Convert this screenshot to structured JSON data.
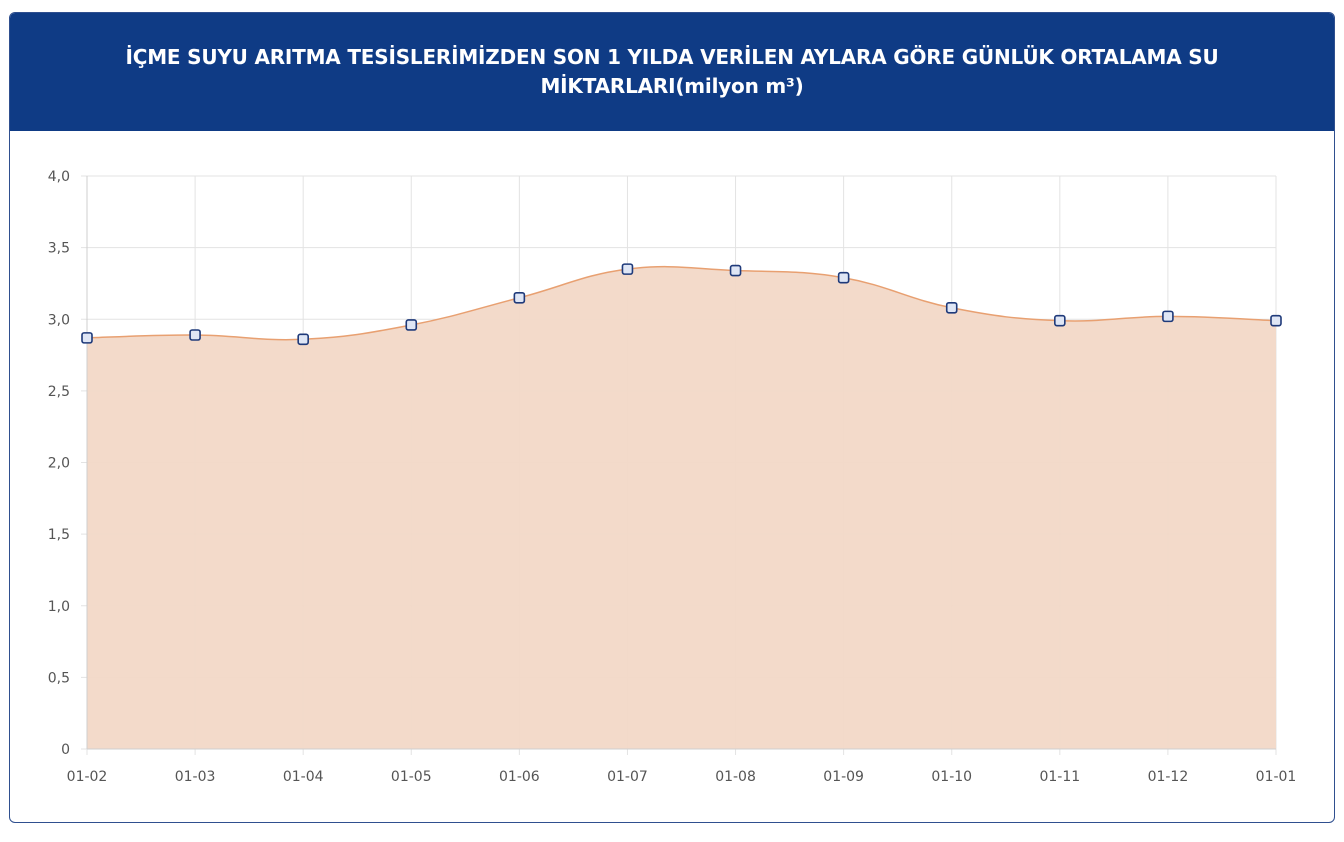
{
  "header": {
    "title": "İÇME SUYU ARITMA TESİSLERİMİZDEN SON 1 YILDA VERİLEN AYLARA GÖRE GÜNLÜK ORTALAMA SU MİKTARLARI(milyon m³)"
  },
  "chart_data": {
    "type": "area",
    "title": "İÇME SUYU ARITMA TESİSLERİMİZDEN SON 1 YILDA VERİLEN AYLARA GÖRE GÜNLÜK ORTALAMA SU MİKTARLARI(milyon m³)",
    "categories": [
      "01-02",
      "01-03",
      "01-04",
      "01-05",
      "01-06",
      "01-07",
      "01-08",
      "01-09",
      "01-10",
      "01-11",
      "01-12",
      "01-01"
    ],
    "values": [
      2.87,
      2.89,
      2.86,
      2.96,
      3.15,
      3.35,
      3.34,
      3.29,
      3.08,
      2.99,
      3.02,
      2.99
    ],
    "ylim": [
      0,
      4
    ],
    "yticks": [
      "0",
      "0,5",
      "1,0",
      "1,5",
      "2,0",
      "2,5",
      "3,0",
      "3,5",
      "4,0"
    ],
    "ytick_values": [
      0,
      0.5,
      1,
      1.5,
      2,
      2.5,
      3,
      3.5,
      4
    ],
    "grid": true,
    "legend": "none",
    "colors": {
      "fill": "#f2d8c7",
      "line": "#e8a071",
      "marker_stroke": "#1f3a7a",
      "marker_fill": "#dfe6f5",
      "grid": "#e3e3e3",
      "header": "#0f3b85"
    }
  }
}
